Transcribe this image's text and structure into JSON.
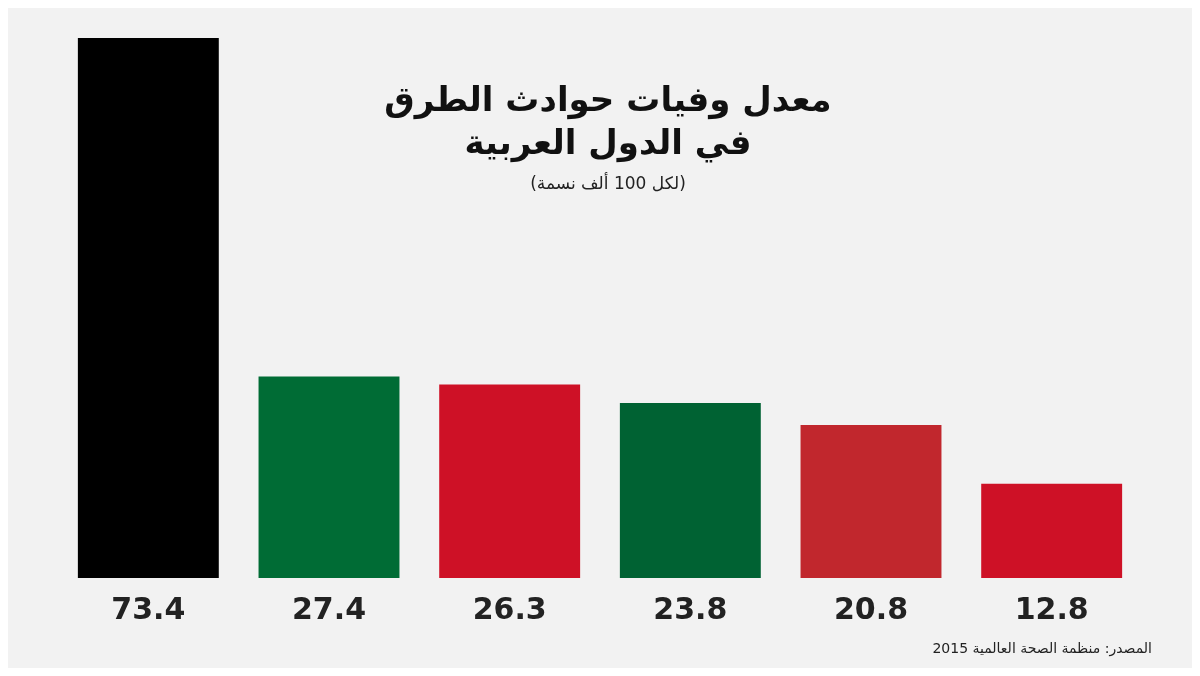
{
  "chart_data": {
    "type": "bar",
    "title": "معدل وفيات حوادث الطرق في الدول العربية",
    "subtitle": "(لكل 100 ألف نسمة)",
    "categories": [
      null,
      null,
      null,
      null,
      null,
      null
    ],
    "values": [
      73.4,
      27.4,
      26.3,
      23.8,
      20.8,
      12.8
    ],
    "colors": [
      "#000000",
      "#006c35",
      "#ce1126",
      "#006233",
      "#c1272d",
      "#ce1126"
    ],
    "data_labels": true,
    "annotations": [
      "المصدر: منظمة الصحة العالمية 2015"
    ]
  }
}
